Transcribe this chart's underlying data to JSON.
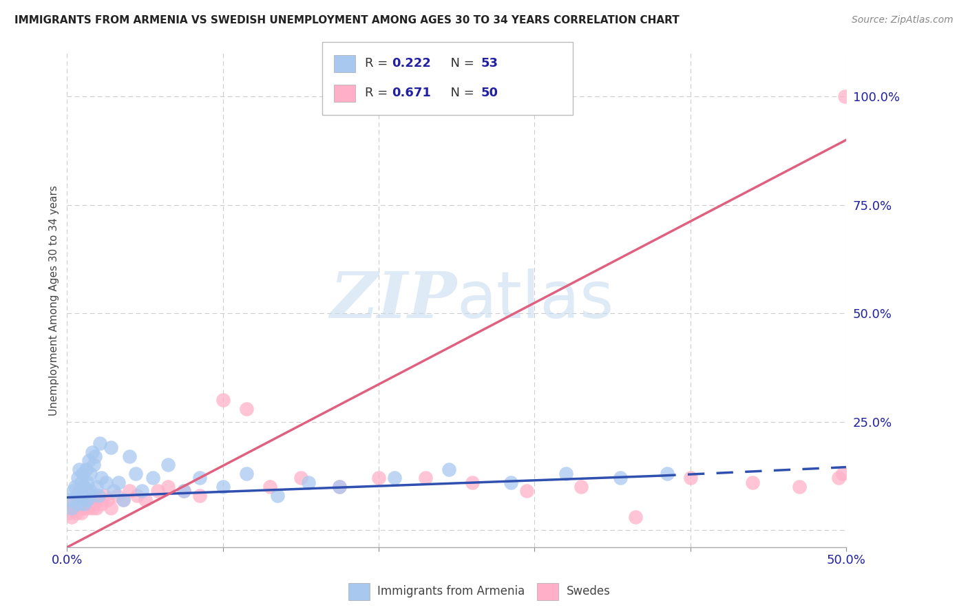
{
  "title": "IMMIGRANTS FROM ARMENIA VS SWEDISH UNEMPLOYMENT AMONG AGES 30 TO 34 YEARS CORRELATION CHART",
  "source": "Source: ZipAtlas.com",
  "ylabel": "Unemployment Among Ages 30 to 34 years",
  "xlim": [
    0.0,
    0.5
  ],
  "ylim": [
    -0.04,
    1.1
  ],
  "xticks": [
    0.0,
    0.1,
    0.2,
    0.3,
    0.4,
    0.5
  ],
  "xticklabels": [
    "0.0%",
    "",
    "",
    "",
    "",
    "50.0%"
  ],
  "yticks_right": [
    0.0,
    0.25,
    0.5,
    0.75,
    1.0
  ],
  "yticklabels_right": [
    "",
    "25.0%",
    "50.0%",
    "75.0%",
    "100.0%"
  ],
  "legend_label1": "Immigrants from Armenia",
  "legend_label2": "Swedes",
  "blue_color": "#A8C8F0",
  "pink_color": "#FFB0C8",
  "blue_line_color": "#3050B0",
  "pink_line_color": "#E06080",
  "text_color": "#2020A0",
  "dark_text": "#333333",
  "watermark_color": "#C8DCF0",
  "grid_color": "#CCCCCC",
  "background_color": "#FFFFFF",
  "blue_scatter_x": [
    0.002,
    0.003,
    0.004,
    0.005,
    0.006,
    0.007,
    0.007,
    0.008,
    0.008,
    0.009,
    0.009,
    0.01,
    0.01,
    0.011,
    0.011,
    0.012,
    0.012,
    0.013,
    0.013,
    0.014,
    0.014,
    0.015,
    0.015,
    0.016,
    0.017,
    0.018,
    0.019,
    0.02,
    0.021,
    0.022,
    0.025,
    0.028,
    0.03,
    0.033,
    0.036,
    0.04,
    0.044,
    0.048,
    0.055,
    0.065,
    0.075,
    0.085,
    0.1,
    0.115,
    0.135,
    0.155,
    0.175,
    0.21,
    0.245,
    0.285,
    0.32,
    0.355,
    0.385
  ],
  "blue_scatter_y": [
    0.07,
    0.05,
    0.09,
    0.1,
    0.08,
    0.12,
    0.06,
    0.09,
    0.14,
    0.07,
    0.11,
    0.08,
    0.13,
    0.06,
    0.1,
    0.09,
    0.14,
    0.07,
    0.11,
    0.08,
    0.16,
    0.09,
    0.13,
    0.18,
    0.15,
    0.17,
    0.1,
    0.08,
    0.2,
    0.12,
    0.11,
    0.19,
    0.09,
    0.11,
    0.07,
    0.17,
    0.13,
    0.09,
    0.12,
    0.15,
    0.09,
    0.12,
    0.1,
    0.13,
    0.08,
    0.11,
    0.1,
    0.12,
    0.14,
    0.11,
    0.13,
    0.12,
    0.13
  ],
  "pink_scatter_x": [
    0.001,
    0.003,
    0.004,
    0.005,
    0.006,
    0.007,
    0.008,
    0.009,
    0.01,
    0.01,
    0.011,
    0.012,
    0.013,
    0.014,
    0.015,
    0.016,
    0.017,
    0.018,
    0.019,
    0.02,
    0.022,
    0.024,
    0.026,
    0.028,
    0.032,
    0.036,
    0.04,
    0.045,
    0.05,
    0.058,
    0.065,
    0.075,
    0.085,
    0.1,
    0.115,
    0.13,
    0.15,
    0.175,
    0.2,
    0.23,
    0.26,
    0.295,
    0.33,
    0.365,
    0.4,
    0.44,
    0.47,
    0.495,
    0.498,
    0.499
  ],
  "pink_scatter_y": [
    0.04,
    0.03,
    0.06,
    0.05,
    0.04,
    0.07,
    0.05,
    0.04,
    0.06,
    0.08,
    0.05,
    0.07,
    0.05,
    0.06,
    0.07,
    0.05,
    0.06,
    0.08,
    0.05,
    0.07,
    0.06,
    0.08,
    0.07,
    0.05,
    0.08,
    0.07,
    0.09,
    0.08,
    0.07,
    0.09,
    0.1,
    0.09,
    0.08,
    0.3,
    0.28,
    0.1,
    0.12,
    0.1,
    0.12,
    0.12,
    0.11,
    0.09,
    0.1,
    0.03,
    0.12,
    0.11,
    0.1,
    0.12,
    0.13,
    1.0
  ],
  "blue_line": {
    "x0": 0.0,
    "y0": 0.075,
    "x1": 0.38,
    "y1": 0.125,
    "xd": 0.5,
    "yd": 0.145
  },
  "pink_line": {
    "x0": 0.0,
    "y0": -0.04,
    "x1": 0.5,
    "y1": 0.9
  }
}
